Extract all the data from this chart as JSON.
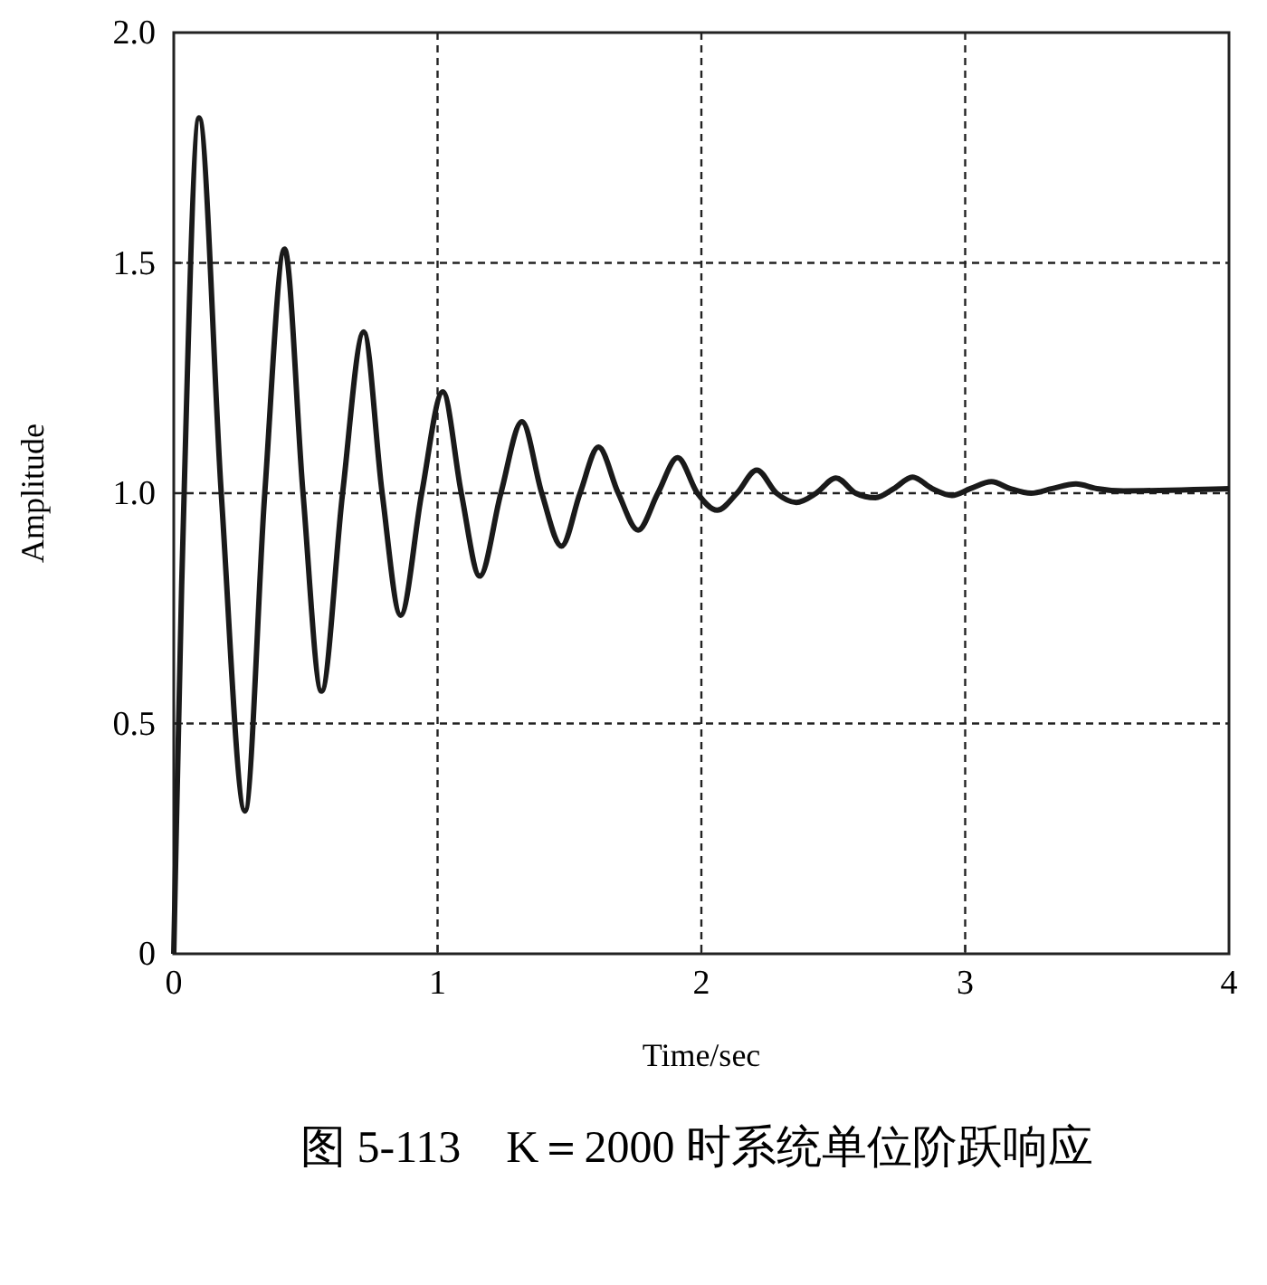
{
  "chart_data": {
    "type": "line",
    "xlabel": "Time/sec",
    "ylabel": "Amplitude",
    "annotations": [
      "图 5-113　K＝2000 时系统单位阶跃响应"
    ],
    "x": [
      0,
      0.03,
      0.096,
      0.18,
      0.27,
      0.345,
      0.42,
      0.49,
      0.56,
      0.64,
      0.72,
      0.79,
      0.86,
      0.94,
      1.02,
      1.09,
      1.16,
      1.24,
      1.32,
      1.395,
      1.47,
      1.54,
      1.61,
      1.685,
      1.76,
      1.835,
      1.91,
      1.985,
      2.06,
      2.135,
      2.21,
      2.285,
      2.36,
      2.435,
      2.51,
      2.585,
      2.66,
      2.73,
      2.8,
      2.875,
      2.95,
      3.02,
      3.1,
      3.17,
      3.25,
      3.33,
      3.42,
      3.5,
      3.6,
      4.0
    ],
    "series": [
      {
        "color": "#1a1a1a",
        "values": [
          0,
          0.8,
          1.815,
          1.0,
          0.31,
          1.0,
          1.53,
          1.0,
          0.57,
          1.0,
          1.35,
          1.0,
          0.735,
          1.0,
          1.22,
          1.0,
          0.82,
          1.0,
          1.155,
          1.0,
          0.885,
          1.0,
          1.1,
          1.0,
          0.92,
          1.0,
          1.077,
          1.0,
          0.963,
          1.0,
          1.05,
          1.0,
          0.98,
          1.0,
          1.033,
          1.0,
          0.99,
          1.01,
          1.035,
          1.01,
          0.995,
          1.01,
          1.025,
          1.01,
          1.0,
          1.01,
          1.02,
          1.01,
          1.005,
          1.01
        ]
      }
    ],
    "xlim": [
      0,
      4
    ],
    "ylim": [
      0,
      2
    ],
    "xticks": [
      0,
      1,
      2,
      3,
      4
    ],
    "yticks": [
      0,
      0.5,
      {
        "value": 1,
        "label": "1.0"
      },
      1.5,
      {
        "value": 2,
        "label": "2.0"
      }
    ],
    "grid": true,
    "line_style": "solid"
  }
}
